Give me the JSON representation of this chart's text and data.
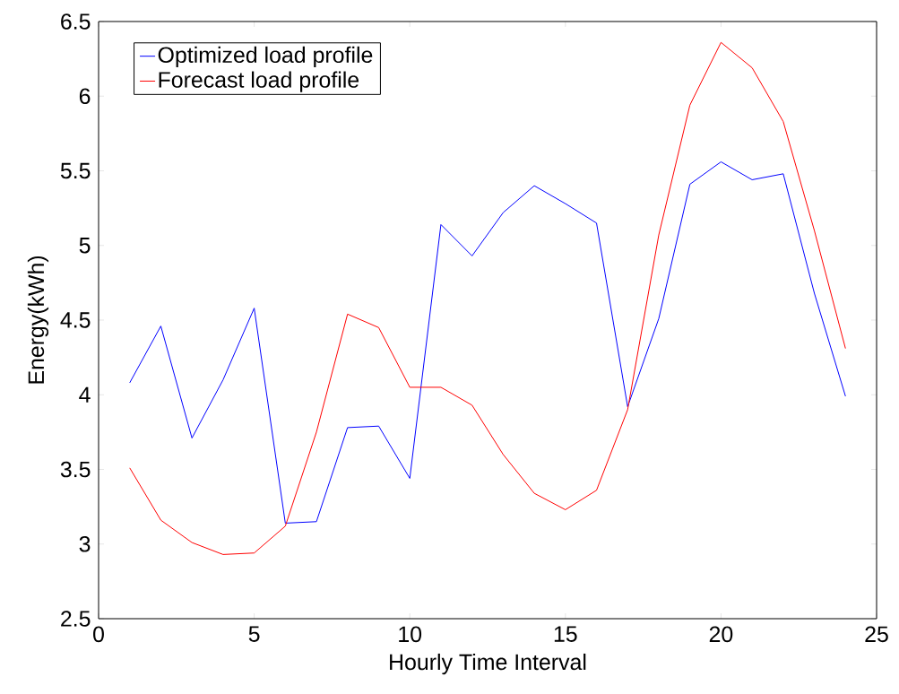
{
  "chart_data": {
    "type": "line",
    "xlabel": "Hourly Time Interval",
    "ylabel": "Energy(kWh)",
    "x": [
      1,
      2,
      3,
      4,
      5,
      6,
      7,
      8,
      9,
      10,
      11,
      12,
      13,
      14,
      15,
      16,
      17,
      18,
      19,
      20,
      21,
      22,
      23,
      24
    ],
    "series": [
      {
        "name": "Optimized load profile",
        "color": "#0000ff",
        "values": [
          4.08,
          4.46,
          3.71,
          4.1,
          4.58,
          3.14,
          3.15,
          3.78,
          3.79,
          3.44,
          5.14,
          4.93,
          5.22,
          5.4,
          5.28,
          5.15,
          3.92,
          4.51,
          5.41,
          5.56,
          5.44,
          5.48,
          4.68,
          3.99
        ]
      },
      {
        "name": "Forecast load profile",
        "color": "#ff0000",
        "values": [
          3.51,
          3.16,
          3.01,
          2.93,
          2.94,
          3.12,
          3.75,
          4.54,
          4.45,
          4.05,
          4.05,
          3.93,
          3.6,
          3.34,
          3.23,
          3.36,
          3.9,
          5.07,
          5.94,
          6.36,
          6.19,
          5.83,
          5.1,
          4.31
        ]
      }
    ],
    "xlim": [
      0,
      25
    ],
    "ylim": [
      2.5,
      6.5
    ],
    "xticks": [
      0,
      5,
      10,
      15,
      20,
      25
    ],
    "yticks": [
      2.5,
      3,
      3.5,
      4,
      4.5,
      5,
      5.5,
      6,
      6.5
    ],
    "legend": "top left",
    "grid": false,
    "marker": "none",
    "line_style": "solid"
  }
}
